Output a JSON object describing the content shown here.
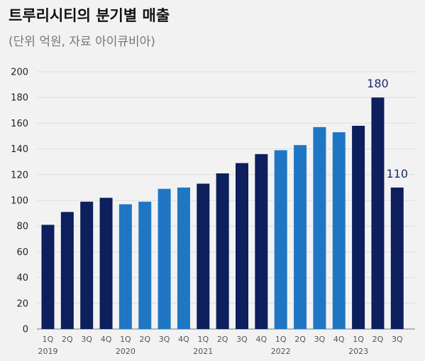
{
  "header": {
    "title": "트루리시티의 분기별 매출",
    "subtitle": "(단위 억원, 자료 아이큐비아)"
  },
  "chart_data": {
    "type": "bar",
    "title": "트루리시티의 분기별 매출",
    "subtitle": "(단위 억원, 자료 아이큐비아)",
    "xlabel": "",
    "ylabel": "",
    "ylim": [
      0,
      200
    ],
    "yticks": [
      0,
      20,
      40,
      60,
      80,
      100,
      120,
      140,
      160,
      180,
      200
    ],
    "grid": true,
    "legend": "none",
    "categories": [
      "1Q",
      "2Q",
      "3Q",
      "4Q",
      "1Q",
      "2Q",
      "3Q",
      "4Q",
      "1Q",
      "2Q",
      "3Q",
      "4Q",
      "1Q",
      "2Q",
      "3Q",
      "4Q",
      "1Q",
      "2Q",
      "3Q"
    ],
    "years": [
      "2019",
      "",
      "",
      "",
      "2020",
      "",
      "",
      "",
      "2021",
      "",
      "",
      "",
      "2022",
      "",
      "",
      "",
      "2023",
      "",
      ""
    ],
    "values": [
      81,
      91,
      99,
      102,
      97,
      99,
      109,
      110,
      113,
      121,
      129,
      136,
      139,
      143,
      157,
      153,
      158,
      180,
      110
    ],
    "bar_colors": [
      "#0d1f5c",
      "#0d1f5c",
      "#0d1f5c",
      "#0d1f5c",
      "#1f77c4",
      "#1f77c4",
      "#1f77c4",
      "#1f77c4",
      "#0d1f5c",
      "#0d1f5c",
      "#0d1f5c",
      "#0d1f5c",
      "#1f77c4",
      "#1f77c4",
      "#1f77c4",
      "#1f77c4",
      "#0d1f5c",
      "#0d1f5c",
      "#0d1f5c"
    ],
    "data_labels": [
      {
        "index": 17,
        "text": "180"
      },
      {
        "index": 18,
        "text": "110"
      }
    ]
  }
}
